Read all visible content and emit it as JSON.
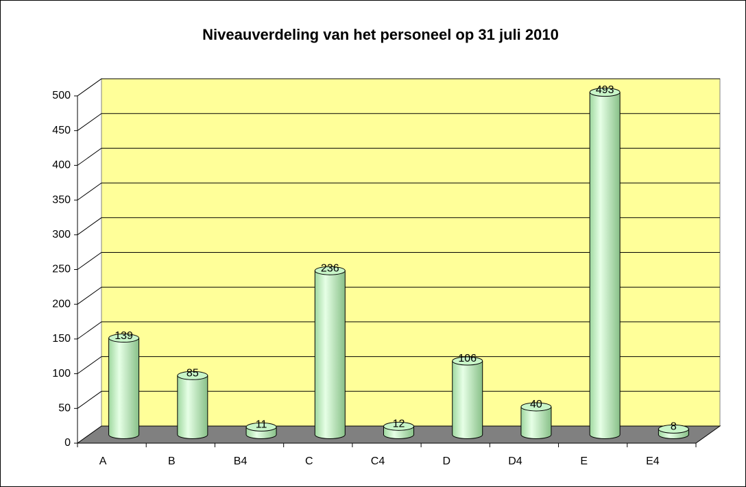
{
  "chart_data": {
    "type": "bar3d",
    "title": "Niveauverdeling van het personeel op 31 juli 2010",
    "categories": [
      "A",
      "B",
      "B4",
      "C",
      "C4",
      "D",
      "D4",
      "E",
      "E4"
    ],
    "values": [
      139,
      85,
      11,
      236,
      12,
      106,
      40,
      493,
      8
    ],
    "color": "#b8f0b8",
    "ylim": [
      0,
      500
    ],
    "yticks": [
      0,
      50,
      100,
      150,
      200,
      250,
      300,
      350,
      400,
      450,
      500
    ],
    "grid": true,
    "data_labels": true
  }
}
